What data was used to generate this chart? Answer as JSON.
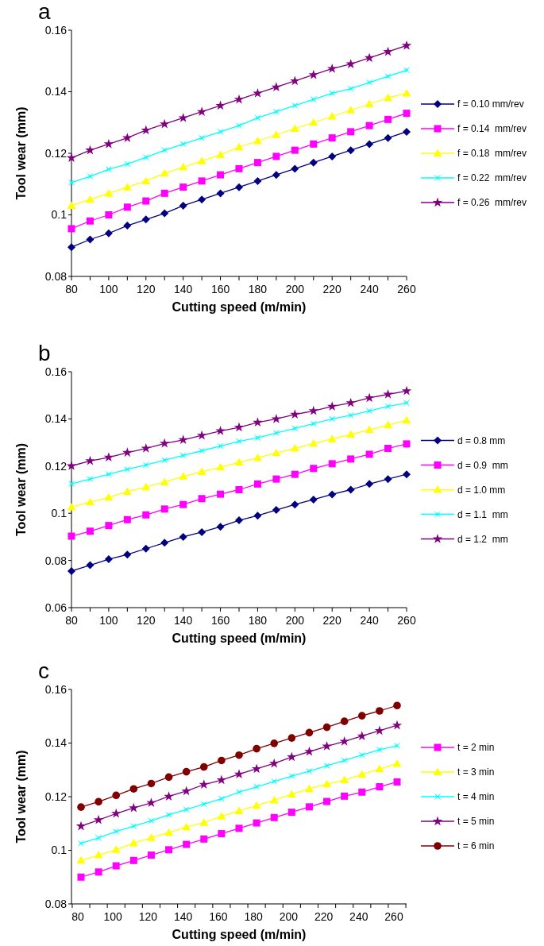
{
  "chart_data": [
    {
      "type": "line",
      "title": "a",
      "xlabel": "Cutting speed (m/min)",
      "ylabel": "Tool wear (mm)",
      "legend": "right",
      "grid": false,
      "x": [
        80,
        90,
        100,
        110,
        120,
        130,
        140,
        150,
        160,
        170,
        180,
        190,
        200,
        210,
        220,
        230,
        240,
        250,
        260
      ],
      "xlim": [
        80,
        260
      ],
      "xticks": [
        80,
        {
          "value": 90,
          "label": null
        },
        100,
        {
          "value": 110,
          "label": null
        },
        120,
        {
          "value": 130,
          "label": null
        },
        140,
        {
          "value": 150,
          "label": null
        },
        160,
        {
          "value": 170,
          "label": null
        },
        180,
        {
          "value": 190,
          "label": null
        },
        200,
        {
          "value": 210,
          "label": null
        },
        220,
        {
          "value": 230,
          "label": null
        },
        240,
        {
          "value": 250,
          "label": null
        },
        260
      ],
      "ylim": [
        0.08,
        0.16
      ],
      "yticks": [
        0.08,
        0.1,
        0.12,
        0.14,
        0.16
      ],
      "series": [
        {
          "name": "f = 0.10 mm/rev",
          "color": "#000080",
          "marker": "diamond",
          "values": [
            0.0895,
            0.092,
            0.094,
            0.0965,
            0.0985,
            0.1005,
            0.103,
            0.105,
            0.107,
            0.109,
            0.111,
            0.113,
            0.115,
            0.117,
            0.119,
            0.121,
            0.123,
            0.125,
            0.127
          ]
        },
        {
          "name": "f = 0.14  mm/rev",
          "color": "#ff00ff",
          "marker": "square",
          "values": [
            0.0955,
            0.098,
            0.1,
            0.1025,
            0.1045,
            0.107,
            0.109,
            0.111,
            0.113,
            0.115,
            0.117,
            0.119,
            0.121,
            0.123,
            0.125,
            0.127,
            0.129,
            0.131,
            0.133
          ]
        },
        {
          "name": "f = 0.18  mm/rev",
          "color": "#ffff00",
          "marker": "triangle",
          "values": [
            0.103,
            0.105,
            0.107,
            0.109,
            0.111,
            0.1135,
            0.1155,
            0.1175,
            0.1195,
            0.122,
            0.124,
            0.126,
            0.128,
            0.13,
            0.132,
            0.134,
            0.136,
            0.138,
            0.1395
          ]
        },
        {
          "name": "f = 0.22  mm/rev",
          "color": "#00ffff",
          "marker": "cross",
          "values": [
            0.1105,
            0.1125,
            0.1148,
            0.1165,
            0.1187,
            0.121,
            0.123,
            0.125,
            0.127,
            0.129,
            0.1315,
            0.1335,
            0.1355,
            0.1375,
            0.1395,
            0.141,
            0.143,
            0.145,
            0.147
          ]
        },
        {
          "name": "f = 0.26  mm/rev",
          "color": "#800080",
          "marker": "star",
          "values": [
            0.1185,
            0.121,
            0.123,
            0.125,
            0.1275,
            0.1295,
            0.1315,
            0.1335,
            0.1355,
            0.1375,
            0.1395,
            0.1415,
            0.1435,
            0.1455,
            0.1475,
            0.149,
            0.151,
            0.153,
            0.155
          ]
        }
      ]
    },
    {
      "type": "line",
      "title": "b",
      "xlabel": "Cutting speed (m/min)",
      "ylabel": "Tool wear (mm)",
      "legend": "right",
      "grid": false,
      "x": [
        80,
        90,
        100,
        110,
        120,
        130,
        140,
        150,
        160,
        170,
        180,
        190,
        200,
        210,
        220,
        230,
        240,
        250,
        260
      ],
      "xlim": [
        80,
        260
      ],
      "xticks": [
        80,
        {
          "value": 90,
          "label": null
        },
        100,
        {
          "value": 110,
          "label": null
        },
        120,
        {
          "value": 130,
          "label": null
        },
        140,
        {
          "value": 150,
          "label": null
        },
        160,
        {
          "value": 170,
          "label": null
        },
        180,
        {
          "value": 190,
          "label": null
        },
        200,
        {
          "value": 210,
          "label": null
        },
        220,
        {
          "value": 230,
          "label": null
        },
        240,
        {
          "value": 250,
          "label": null
        },
        260
      ],
      "ylim": [
        0.06,
        0.16
      ],
      "yticks": [
        0.06,
        0.08,
        0.1,
        0.12,
        0.14,
        0.16
      ],
      "series": [
        {
          "name": "d = 0.8 mm",
          "color": "#000080",
          "marker": "diamond",
          "values": [
            0.0755,
            0.078,
            0.0805,
            0.0825,
            0.085,
            0.0875,
            0.09,
            0.092,
            0.0943,
            0.097,
            0.099,
            0.1014,
            0.1037,
            0.1058,
            0.108,
            0.11,
            0.1124,
            0.1145,
            0.1165
          ]
        },
        {
          "name": "d = 0.9  mm",
          "color": "#ff00ff",
          "marker": "square",
          "values": [
            0.0903,
            0.0924,
            0.0948,
            0.0973,
            0.0993,
            0.1018,
            0.1037,
            0.1062,
            0.1081,
            0.11,
            0.1124,
            0.1145,
            0.1165,
            0.119,
            0.121,
            0.123,
            0.125,
            0.1275,
            0.1294
          ]
        },
        {
          "name": "d = 1.0 mm",
          "color": "#ffff00",
          "marker": "triangle",
          "values": [
            0.1026,
            0.1047,
            0.1067,
            0.1092,
            0.1111,
            0.1132,
            0.1156,
            0.1176,
            0.1195,
            0.1216,
            0.1235,
            0.1256,
            0.1275,
            0.1296,
            0.1315,
            0.1334,
            0.1354,
            0.1374,
            0.1394
          ]
        },
        {
          "name": "d = 1.1  mm",
          "color": "#00ffff",
          "marker": "cross",
          "values": [
            0.1125,
            0.1145,
            0.1165,
            0.1186,
            0.1205,
            0.1225,
            0.1245,
            0.1265,
            0.1285,
            0.1305,
            0.132,
            0.134,
            0.136,
            0.138,
            0.14,
            0.1415,
            0.1434,
            0.1453,
            0.1468
          ]
        },
        {
          "name": "d = 1.2  mm",
          "color": "#800080",
          "marker": "star",
          "values": [
            0.1201,
            0.1222,
            0.1237,
            0.1257,
            0.1275,
            0.1296,
            0.1311,
            0.133,
            0.1349,
            0.1364,
            0.1385,
            0.14,
            0.1419,
            0.1434,
            0.1453,
            0.1468,
            0.1489,
            0.1504,
            0.1518
          ]
        }
      ]
    },
    {
      "type": "line",
      "title": "c",
      "xlabel": "Cutting speed (m/min)",
      "ylabel": "Tool wear (mm)",
      "legend": "right",
      "grid": false,
      "categories": [
        "80",
        null,
        "100",
        null,
        "120",
        null,
        "140",
        null,
        "160",
        null,
        "180",
        null,
        "200",
        null,
        "220",
        null,
        "240",
        null,
        "260"
      ],
      "ylim": [
        0.08,
        0.16
      ],
      "yticks": [
        0.08,
        0.1,
        0.12,
        0.14,
        0.16
      ],
      "series": [
        {
          "name": "t = 2 min",
          "color": "#ff00ff",
          "marker": "square",
          "values": [
            0.09,
            0.0919,
            0.0942,
            0.0962,
            0.0982,
            0.1002,
            0.1022,
            0.1042,
            0.1062,
            0.1082,
            0.1102,
            0.1122,
            0.1142,
            0.1162,
            0.1182,
            0.1202,
            0.1217,
            0.1237,
            0.1255
          ]
        },
        {
          "name": "t = 3 min",
          "color": "#ffff00",
          "marker": "triangle",
          "values": [
            0.0962,
            0.0982,
            0.1002,
            0.1027,
            0.1047,
            0.1066,
            0.1087,
            0.1103,
            0.1127,
            0.1147,
            0.1167,
            0.1187,
            0.1209,
            0.1229,
            0.1247,
            0.1262,
            0.1283,
            0.1303,
            0.1323
          ]
        },
        {
          "name": "t = 4 min",
          "color": "#00ffff",
          "marker": "cross",
          "values": [
            0.1026,
            0.1046,
            0.107,
            0.109,
            0.111,
            0.1132,
            0.1152,
            0.1172,
            0.1192,
            0.1217,
            0.1237,
            0.1257,
            0.1277,
            0.1295,
            0.1315,
            0.1335,
            0.1355,
            0.1375,
            0.139
          ]
        },
        {
          "name": "t = 5 min",
          "color": "#800080",
          "marker": "star",
          "values": [
            0.109,
            0.1113,
            0.1137,
            0.1158,
            0.1177,
            0.1201,
            0.1221,
            0.1245,
            0.1262,
            0.1284,
            0.1304,
            0.1324,
            0.1348,
            0.1368,
            0.1388,
            0.1406,
            0.1426,
            0.1446,
            0.1466
          ]
        },
        {
          "name": "t = 6 min",
          "color": "#800000",
          "marker": "circle",
          "values": [
            0.1161,
            0.1181,
            0.1205,
            0.1229,
            0.1249,
            0.1273,
            0.1293,
            0.1311,
            0.1335,
            0.1355,
            0.1379,
            0.1399,
            0.1419,
            0.1439,
            0.1459,
            0.1481,
            0.1502,
            0.152,
            0.154
          ]
        }
      ]
    }
  ]
}
